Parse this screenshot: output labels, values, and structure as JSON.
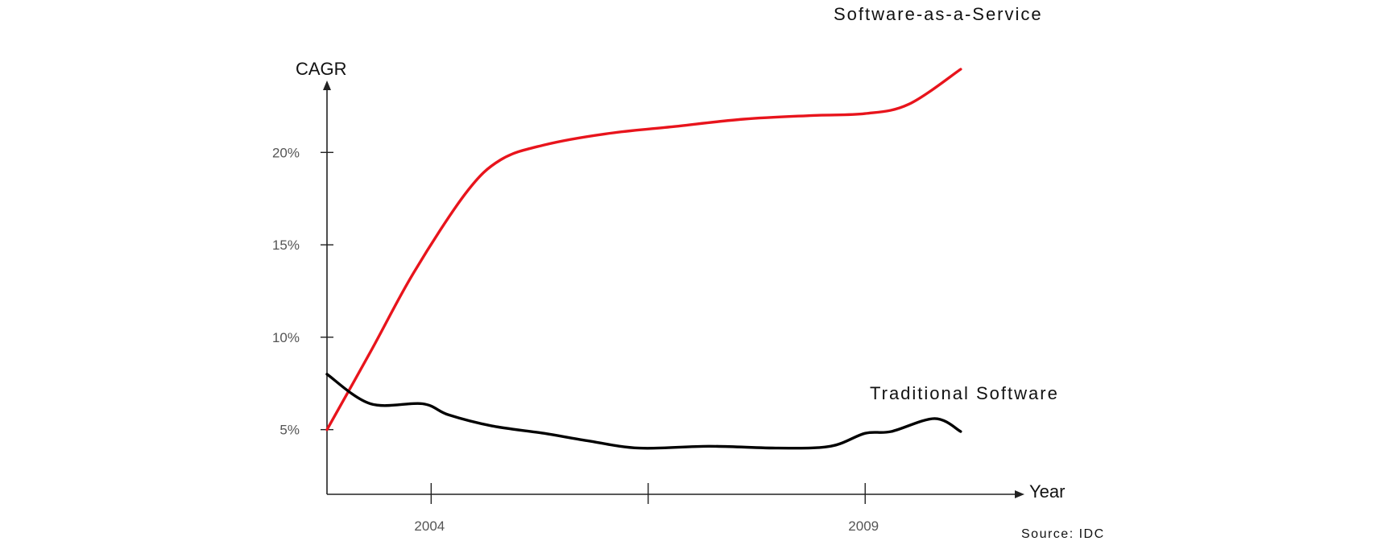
{
  "chart_data": {
    "type": "line",
    "x_axis_label": "Year",
    "y_axis_label": "CAGR",
    "source": "Source: IDC",
    "y_ticks": [
      {
        "value": 5,
        "label": "5%"
      },
      {
        "value": 10,
        "label": "10%"
      },
      {
        "value": 15,
        "label": "15%"
      },
      {
        "value": 20,
        "label": "20%"
      }
    ],
    "x_ticks": [
      {
        "value": 2004,
        "label": "2004"
      },
      {
        "value": 2006.5,
        "label": ""
      },
      {
        "value": 2009,
        "label": "2009"
      }
    ],
    "series": [
      {
        "name": "Software-as-a-Service",
        "color": "#e8141c",
        "points": [
          [
            2002.8,
            5.0
          ],
          [
            2003.3,
            9.2
          ],
          [
            2003.8,
            13.5
          ],
          [
            2004.4,
            17.8
          ],
          [
            2004.8,
            19.6
          ],
          [
            2005.3,
            20.4
          ],
          [
            2006.0,
            21.0
          ],
          [
            2006.8,
            21.4
          ],
          [
            2007.6,
            21.8
          ],
          [
            2008.4,
            22.0
          ],
          [
            2009.0,
            22.1
          ],
          [
            2009.5,
            22.6
          ],
          [
            2010.1,
            24.5
          ]
        ]
      },
      {
        "name": "Traditional Software",
        "color": "#000000",
        "points": [
          [
            2002.8,
            8.0
          ],
          [
            2003.3,
            6.4
          ],
          [
            2003.9,
            6.4
          ],
          [
            2004.2,
            5.8
          ],
          [
            2004.7,
            5.2
          ],
          [
            2005.3,
            4.8
          ],
          [
            2005.8,
            4.4
          ],
          [
            2006.4,
            4.0
          ],
          [
            2007.2,
            4.1
          ],
          [
            2008.0,
            4.0
          ],
          [
            2008.6,
            4.1
          ],
          [
            2009.0,
            4.8
          ],
          [
            2009.3,
            4.9
          ],
          [
            2009.8,
            5.6
          ],
          [
            2010.1,
            4.9
          ]
        ]
      }
    ],
    "xlim": [
      2002.8,
      2010.0
    ],
    "ylim": [
      1.5,
      21.8
    ],
    "grid": false,
    "legend": "inline labels at series ends"
  }
}
